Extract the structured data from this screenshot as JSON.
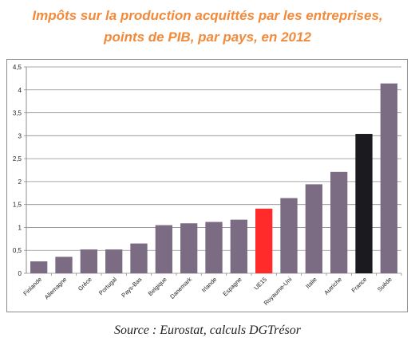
{
  "title_lines": [
    "Impôts sur la production acquittés par les entreprises,",
    "points de PIB, par pays, en 2012"
  ],
  "source": "Source : Eurostat, calculs DGTrésor",
  "colors": {
    "title": "#f28a3a",
    "bar_default": "#7b6c84",
    "bar_eu15": "#ff2a2a",
    "bar_france": "#1a1a1f",
    "gridline": "#8c8c8c"
  },
  "chart_data": {
    "type": "bar",
    "categories": [
      "Finlande",
      "Allemagne",
      "Grèce",
      "Portugal",
      "Pays-Bas",
      "Belgique",
      "Danemark",
      "Irlande",
      "Espagne",
      "UE15",
      "Royaume-Uni",
      "Italie",
      "Autriche",
      "France",
      "Suède"
    ],
    "values": [
      0.26,
      0.36,
      0.52,
      0.52,
      0.65,
      1.05,
      1.09,
      1.12,
      1.17,
      1.41,
      1.64,
      1.94,
      2.21,
      3.04,
      4.14
    ],
    "highlight": {
      "UE15": "bar_eu15",
      "France": "bar_france"
    },
    "ylim": [
      0,
      4.5
    ],
    "yticks": [
      "0",
      "0,5",
      "1",
      "1,5",
      "2",
      "2,5",
      "3",
      "3,5",
      "4",
      "4,5"
    ],
    "grid": true,
    "legend": "none"
  }
}
